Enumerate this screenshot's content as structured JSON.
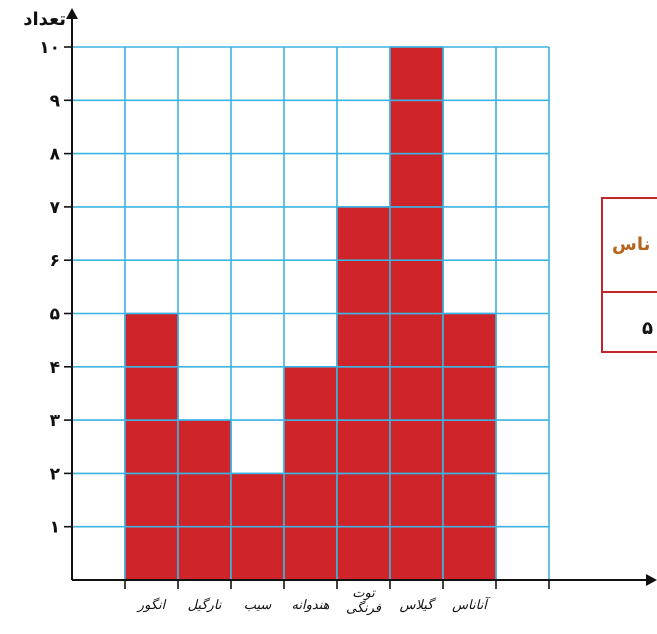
{
  "chart_data": {
    "type": "bar",
    "ylabel": "تعداد",
    "xlabel": "",
    "categories": [
      "انگور",
      "نارگیل",
      "سیب",
      "هندوانه",
      "توت فرنگی",
      "گیلاس",
      "آناناس"
    ],
    "category_lines": [
      [
        "انگور"
      ],
      [
        "نارگیل"
      ],
      [
        "سیب"
      ],
      [
        "هندوانه"
      ],
      [
        "توت",
        "فرنگی"
      ],
      [
        "گیلاس"
      ],
      [
        "آناناس"
      ]
    ],
    "values": [
      5,
      3,
      2,
      4,
      7,
      10,
      5
    ],
    "ylim": [
      0,
      10
    ],
    "yticks": [
      1,
      2,
      3,
      4,
      5,
      6,
      7,
      8,
      9,
      10
    ],
    "ytick_labels": [
      "۱",
      "۲",
      "۳",
      "۴",
      "۵",
      "۶",
      "۷",
      "۸",
      "۹",
      "۱۰"
    ],
    "grid": true,
    "bar_color": "#d0242b",
    "grid_color": "#3db3e3"
  },
  "side_table": {
    "header_text": "ناس",
    "value_text": "۵",
    "header_color": "#b5651d",
    "border_color": "#c0272d"
  }
}
